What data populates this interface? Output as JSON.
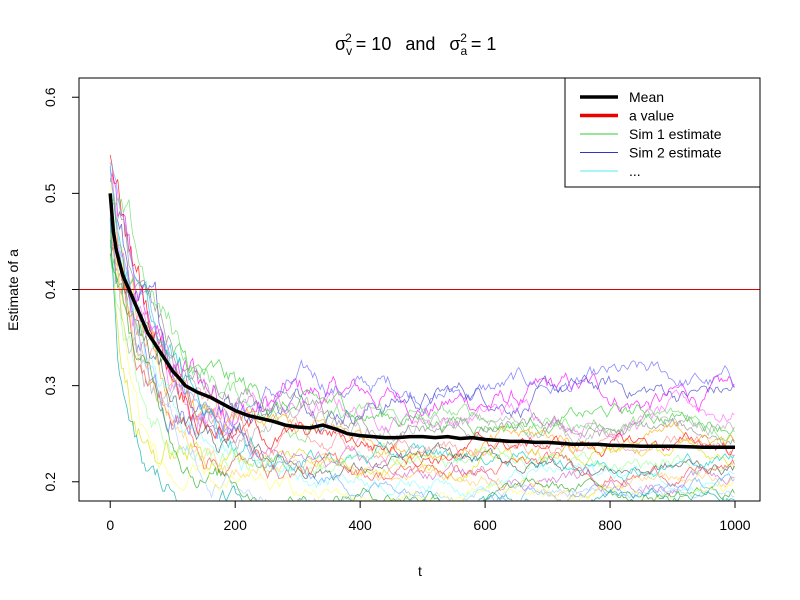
{
  "chart_data": {
    "type": "line",
    "title": {
      "left_symbol": "σ",
      "left_sup": "2",
      "left_sub": "v",
      "left_value": "= 10",
      "joiner": "and",
      "right_symbol": "σ",
      "right_sup": "2",
      "right_sub": "a",
      "right_value": "= 1"
    },
    "xlabel": "t",
    "ylabel": "Estimate of a",
    "xlim": [
      -50,
      1040
    ],
    "ylim": [
      0.18,
      0.62
    ],
    "xticks": [
      0,
      200,
      400,
      600,
      800,
      1000
    ],
    "yticks": [
      0.2,
      0.3,
      0.4,
      0.5,
      0.6
    ],
    "xtick_labels": [
      "0",
      "200",
      "400",
      "600",
      "800",
      "1000"
    ],
    "ytick_labels": [
      "0.2",
      "0.3",
      "0.4",
      "0.5",
      "0.6"
    ],
    "grid": false,
    "legend_position": "top-right",
    "legend": [
      {
        "label": "Mean",
        "color": "#000000",
        "width": 3.5
      },
      {
        "label": "a value",
        "color": "#ee0000",
        "width": 3.5
      },
      {
        "label": "Sim 1 estimate",
        "color": "#33cc33",
        "width": 1
      },
      {
        "label": "Sim 2 estimate",
        "color": "#3333cc",
        "width": 1
      },
      {
        "label": "...",
        "color": "#55eeee",
        "width": 1
      }
    ],
    "reference_line": {
      "value": 0.4,
      "color": "#dd0000"
    },
    "mean_series": {
      "color": "#000000",
      "points": [
        [
          0,
          0.5
        ],
        [
          5,
          0.46
        ],
        [
          10,
          0.44
        ],
        [
          20,
          0.415
        ],
        [
          30,
          0.4
        ],
        [
          40,
          0.385
        ],
        [
          50,
          0.37
        ],
        [
          60,
          0.355
        ],
        [
          70,
          0.345
        ],
        [
          80,
          0.335
        ],
        [
          90,
          0.325
        ],
        [
          100,
          0.315
        ],
        [
          110,
          0.308
        ],
        [
          120,
          0.3
        ],
        [
          140,
          0.293
        ],
        [
          160,
          0.288
        ],
        [
          180,
          0.281
        ],
        [
          200,
          0.274
        ],
        [
          220,
          0.269
        ],
        [
          240,
          0.266
        ],
        [
          260,
          0.263
        ],
        [
          280,
          0.259
        ],
        [
          300,
          0.257
        ],
        [
          320,
          0.256
        ],
        [
          340,
          0.259
        ],
        [
          360,
          0.255
        ],
        [
          380,
          0.25
        ],
        [
          400,
          0.248
        ],
        [
          420,
          0.247
        ],
        [
          440,
          0.246
        ],
        [
          460,
          0.246
        ],
        [
          480,
          0.247
        ],
        [
          500,
          0.247
        ],
        [
          520,
          0.246
        ],
        [
          540,
          0.247
        ],
        [
          560,
          0.245
        ],
        [
          580,
          0.246
        ],
        [
          600,
          0.244
        ],
        [
          620,
          0.243
        ],
        [
          640,
          0.242
        ],
        [
          660,
          0.242
        ],
        [
          680,
          0.241
        ],
        [
          700,
          0.241
        ],
        [
          720,
          0.24
        ],
        [
          740,
          0.239
        ],
        [
          760,
          0.239
        ],
        [
          780,
          0.239
        ],
        [
          800,
          0.238
        ],
        [
          850,
          0.237
        ],
        [
          900,
          0.237
        ],
        [
          950,
          0.236
        ],
        [
          1000,
          0.236
        ]
      ]
    },
    "sim_series": [
      {
        "color": "#ff00ff",
        "final": 0.285,
        "wobble": 0.014
      },
      {
        "color": "#6666ff",
        "final": 0.298,
        "wobble": 0.012
      },
      {
        "color": "#4444cc",
        "final": 0.292,
        "wobble": 0.012
      },
      {
        "color": "#ff66ff",
        "final": 0.272,
        "wobble": 0.012
      },
      {
        "color": "#33cc33",
        "final": 0.268,
        "wobble": 0.01
      },
      {
        "color": "#66dd66",
        "final": 0.262,
        "wobble": 0.01
      },
      {
        "color": "#aaaaaa",
        "final": 0.255,
        "wobble": 0.011
      },
      {
        "color": "#888888",
        "final": 0.248,
        "wobble": 0.01
      },
      {
        "color": "#ffaa00",
        "final": 0.243,
        "wobble": 0.01
      },
      {
        "color": "#ff0000",
        "final": 0.238,
        "wobble": 0.01
      },
      {
        "color": "#ff8888",
        "final": 0.232,
        "wobble": 0.01
      },
      {
        "color": "#dddd00",
        "final": 0.228,
        "wobble": 0.009
      },
      {
        "color": "#00cccc",
        "final": 0.224,
        "wobble": 0.009
      },
      {
        "color": "#99ff99",
        "final": 0.22,
        "wobble": 0.009
      },
      {
        "color": "#555555",
        "final": 0.216,
        "wobble": 0.009
      },
      {
        "color": "#ff4444",
        "final": 0.212,
        "wobble": 0.009
      },
      {
        "color": "#88ffff",
        "final": 0.208,
        "wobble": 0.009
      },
      {
        "color": "#cc66cc",
        "final": 0.205,
        "wobble": 0.009
      },
      {
        "color": "#ffcc66",
        "final": 0.201,
        "wobble": 0.008
      },
      {
        "color": "#66aaff",
        "final": 0.196,
        "wobble": 0.008
      },
      {
        "color": "#22aa22",
        "final": 0.19,
        "wobble": 0.008
      },
      {
        "color": "#aaccff",
        "final": 0.186,
        "wobble": 0.008
      },
      {
        "color": "#ffff66",
        "final": 0.182,
        "wobble": 0.008
      },
      {
        "color": "#00aaaa",
        "final": 0.178,
        "wobble": 0.008
      }
    ]
  }
}
